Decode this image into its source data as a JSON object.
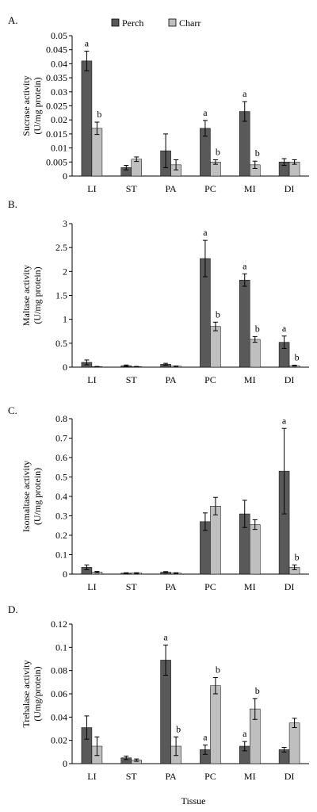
{
  "legend": {
    "items": [
      {
        "name": "Perch",
        "color": "#595959"
      },
      {
        "name": "Charr",
        "color": "#bfbfbf"
      }
    ],
    "placement": "top-center"
  },
  "xlabel": "Tissue",
  "chart_data": [
    {
      "type": "bar",
      "panel_label": "A.",
      "ylabel": [
        "Sucrase activity",
        "(U/mg protein)"
      ],
      "categories": [
        "LI",
        "ST",
        "PA",
        "PC",
        "MI",
        "DI"
      ],
      "ylim": [
        0,
        0.05
      ],
      "yticks": [
        0,
        0.005,
        0.01,
        0.015,
        0.02,
        0.025,
        0.03,
        0.035,
        0.04,
        0.045,
        0.05
      ],
      "ytick_labels": [
        "0",
        "0.005",
        "0.01",
        "0.015",
        "0.02",
        "0.025",
        "0.03",
        "0.035",
        "0.04",
        "0.045",
        "0.05"
      ],
      "series": [
        {
          "name": "Perch",
          "values": [
            0.041,
            0.003,
            0.009,
            0.017,
            0.023,
            0.005
          ],
          "errors": [
            0.0035,
            0.0008,
            0.006,
            0.0028,
            0.0035,
            0.0012
          ],
          "labels": [
            "a",
            "",
            "",
            "a",
            "a",
            ""
          ]
        },
        {
          "name": "Charr",
          "values": [
            0.017,
            0.006,
            0.004,
            0.005,
            0.004,
            0.005
          ],
          "errors": [
            0.0022,
            0.0008,
            0.0018,
            0.0008,
            0.0013,
            0.0008
          ],
          "labels": [
            "b",
            "",
            "",
            "b",
            "b",
            ""
          ]
        }
      ],
      "grid": false
    },
    {
      "type": "bar",
      "panel_label": "B.",
      "ylabel": [
        "Maltase activity",
        "(U/mg protein)"
      ],
      "categories": [
        "LI",
        "ST",
        "PA",
        "PC",
        "MI",
        "DI"
      ],
      "ylim": [
        0,
        3
      ],
      "yticks": [
        0,
        0.5,
        1,
        1.5,
        2,
        2.5,
        3
      ],
      "ytick_labels": [
        "0",
        "0.5",
        "1",
        "1.5",
        "2",
        "2.5",
        "3"
      ],
      "series": [
        {
          "name": "Perch",
          "values": [
            0.1,
            0.03,
            0.06,
            2.27,
            1.82,
            0.52
          ],
          "errors": [
            0.05,
            0.015,
            0.02,
            0.38,
            0.13,
            0.13
          ],
          "labels": [
            "",
            "",
            "",
            "a",
            "a",
            "a"
          ]
        },
        {
          "name": "Charr",
          "values": [
            0.01,
            0.01,
            0.02,
            0.85,
            0.58,
            0.03
          ],
          "errors": [
            0.005,
            0.005,
            0.005,
            0.09,
            0.06,
            0.01
          ],
          "labels": [
            "",
            "",
            "",
            "b",
            "b",
            "b"
          ]
        }
      ],
      "grid": false
    },
    {
      "type": "bar",
      "panel_label": "C.",
      "ylabel": [
        "Isomaltase activity",
        "(U/mg protein)"
      ],
      "categories": [
        "LI",
        "ST",
        "PA",
        "PC",
        "MI",
        "DI"
      ],
      "ylim": [
        0,
        0.8
      ],
      "yticks": [
        0,
        0.1,
        0.2,
        0.3,
        0.4,
        0.5,
        0.6,
        0.7,
        0.8
      ],
      "ytick_labels": [
        "0",
        "0.1",
        "0.2",
        "0.3",
        "0.4",
        "0.5",
        "0.6",
        "0.7",
        "0.8"
      ],
      "series": [
        {
          "name": "Perch",
          "values": [
            0.035,
            0.005,
            0.01,
            0.27,
            0.31,
            0.53
          ],
          "errors": [
            0.012,
            0.002,
            0.003,
            0.045,
            0.07,
            0.22
          ],
          "labels": [
            "",
            "",
            "",
            "",
            "",
            "a"
          ]
        },
        {
          "name": "Charr",
          "values": [
            0.01,
            0.005,
            0.005,
            0.35,
            0.255,
            0.035
          ],
          "errors": [
            0.004,
            0.002,
            0.002,
            0.045,
            0.025,
            0.012
          ],
          "labels": [
            "",
            "",
            "",
            "",
            "",
            "b"
          ]
        }
      ],
      "grid": false
    },
    {
      "type": "bar",
      "panel_label": "D.",
      "ylabel": [
        "Trehalase activity",
        "(Umg/protein)"
      ],
      "categories": [
        "LI",
        "ST",
        "PA",
        "PC",
        "MI",
        "DI"
      ],
      "ylim": [
        0,
        0.12
      ],
      "yticks": [
        0,
        0.02,
        0.04,
        0.06,
        0.08,
        0.1,
        0.12
      ],
      "ytick_labels": [
        "0",
        "0.02",
        "0.04",
        "0.06",
        "0.08",
        "0.1",
        "0.12"
      ],
      "series": [
        {
          "name": "Perch",
          "values": [
            0.031,
            0.005,
            0.089,
            0.012,
            0.015,
            0.012
          ],
          "errors": [
            0.01,
            0.0015,
            0.013,
            0.004,
            0.004,
            0.002
          ],
          "labels": [
            "",
            "",
            "a",
            "a",
            "a",
            ""
          ]
        },
        {
          "name": "Charr",
          "values": [
            0.015,
            0.003,
            0.015,
            0.067,
            0.047,
            0.035
          ],
          "errors": [
            0.008,
            0.001,
            0.008,
            0.007,
            0.009,
            0.004
          ],
          "labels": [
            "",
            "",
            "b",
            "b",
            "b",
            ""
          ]
        }
      ],
      "grid": false
    }
  ]
}
